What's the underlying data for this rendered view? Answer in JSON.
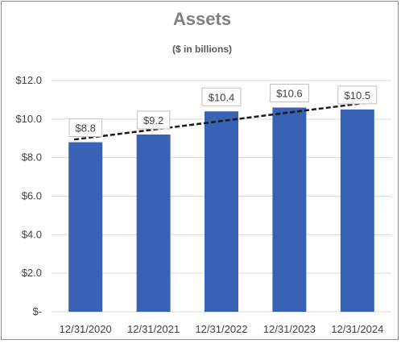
{
  "chart_data": {
    "type": "bar",
    "title": "Assets",
    "subtitle": "($ in billions)",
    "categories": [
      "12/31/2020",
      "12/31/2021",
      "12/31/2022",
      "12/31/2023",
      "12/31/2024"
    ],
    "values": [
      8.8,
      9.2,
      10.4,
      10.6,
      10.5
    ],
    "data_labels": [
      "$8.8",
      "$9.2",
      "$10.4",
      "$10.6",
      "$10.5"
    ],
    "y_ticks": [
      0,
      2,
      4,
      6,
      8,
      10,
      12
    ],
    "y_tick_labels": [
      "$-",
      "$2.0",
      "$4.0",
      "$6.0",
      "$8.0",
      "$10.0",
      "$12.0"
    ],
    "ylim": [
      0,
      12
    ],
    "xlabel": "",
    "ylabel": "",
    "grid": true,
    "legend": "none",
    "trendline": {
      "type": "linear",
      "style": "dashed"
    },
    "colors": {
      "bar": "#3a62b4",
      "trend": "#1a1a1a",
      "grid": "#d9d9d9"
    }
  }
}
